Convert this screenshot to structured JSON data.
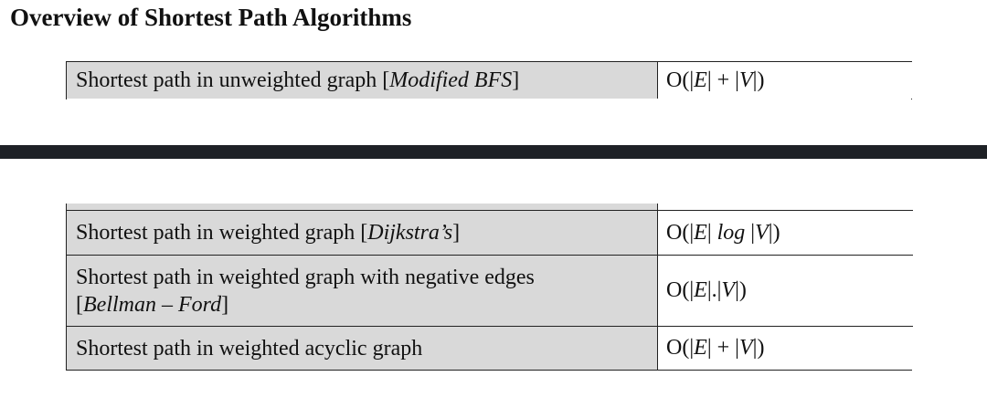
{
  "page": {
    "title": "Overview of Shortest Path Algorithms"
  },
  "top_table": {
    "rows": [
      {
        "problem_prefix": "Shortest path in unweighted graph [",
        "algorithm": "Modified BFS",
        "problem_suffix": "]",
        "complexity": {
          "p1": "O(|",
          "v1": "E",
          "p2": "| + |",
          "v2": "V",
          "p3": "|)"
        }
      }
    ]
  },
  "bottom_table": {
    "rows": [
      {
        "problem_prefix": "Shortest path in weighted graph [",
        "algorithm": "Dijkstra’s",
        "problem_suffix": "]",
        "complexity": {
          "p1": "O(|",
          "v1": "E",
          "p2": "| ",
          "log": "log",
          "p3": " |",
          "v2": "V",
          "p4": "|)"
        }
      },
      {
        "problem_line1": "Shortest path in weighted graph with negative edges",
        "problem_prefix": "[",
        "algorithm": "Bellman – Ford",
        "problem_suffix": "]",
        "complexity": {
          "p1": "O(|",
          "v1": "E",
          "p2": "|.|",
          "v2": "V",
          "p3": "|)"
        }
      },
      {
        "problem_prefix": "Shortest path in weighted acyclic graph",
        "complexity": {
          "p1": "O(|",
          "v1": "E",
          "p2": "| + |",
          "v2": "V",
          "p3": "|)"
        }
      }
    ]
  },
  "colors": {
    "header_cell_bg": "#d9d9d9",
    "divider_bar": "#1e2126"
  }
}
